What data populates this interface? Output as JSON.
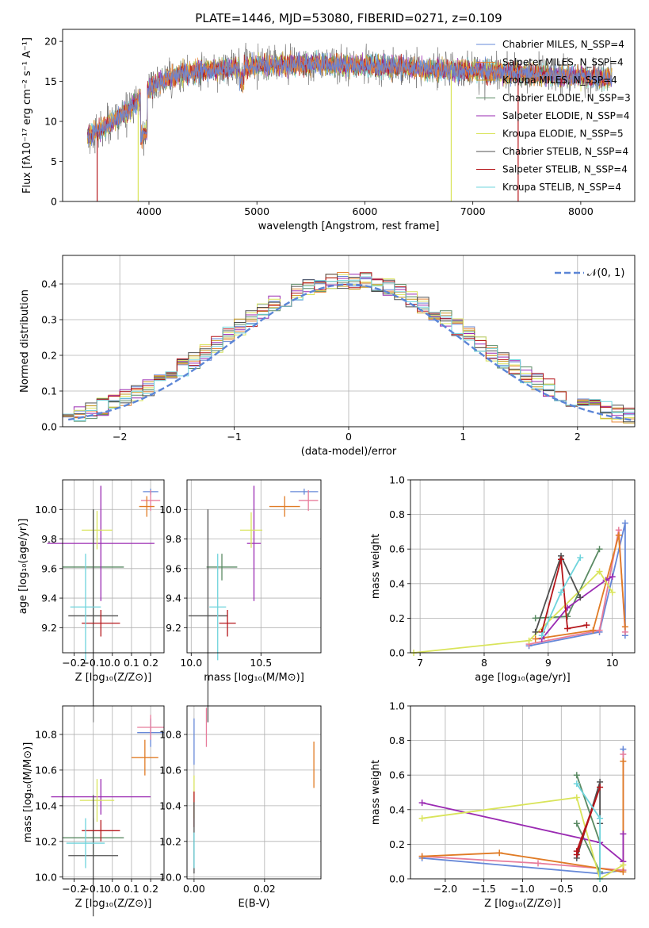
{
  "chart_data": [
    {
      "type": "line",
      "title": "PLATE=1446, MJD=53080, FIBERID=0271, z=0.109",
      "xlabel": "wavelength [Angstrom, rest frame]",
      "ylabel": "Flux [fλ10⁻¹⁷ erg cm⁻² s⁻¹ A⁻¹]",
      "xlim": [
        3200,
        8500
      ],
      "ylim": [
        0,
        21.5
      ],
      "xticks": [
        "4000",
        "5000",
        "6000",
        "7000",
        "8000"
      ],
      "yticks": [
        "0",
        "5",
        "10",
        "15",
        "20"
      ],
      "spectrum_range": [
        3430,
        8290
      ],
      "legend_position": "upper right",
      "series": [
        {
          "name": "Chabrier MILES, N_SSP=4",
          "color": "#6688d8"
        },
        {
          "name": "Salpeter MILES, N_SSP=4",
          "color": "#e8883a"
        },
        {
          "name": "Kroupa MILES, N_SSP=4",
          "color": "#c79a1e"
        },
        {
          "name": "Chabrier ELODIE, N_SSP=3",
          "color": "#5a8a63"
        },
        {
          "name": "Salpeter ELODIE, N_SSP=4",
          "color": "#9a2ab2"
        },
        {
          "name": "Kroupa ELODIE, N_SSP=5",
          "color": "#d9e45a"
        },
        {
          "name": "Chabrier STELIB, N_SSP=4",
          "color": "#505050"
        },
        {
          "name": "Salpeter STELIB, N_SSP=4",
          "color": "#b5161b"
        },
        {
          "name": "Kroupa STELIB, N_SSP=4",
          "color": "#6fd4dc"
        }
      ],
      "continuum": [
        [
          3430,
          8.0
        ],
        [
          3550,
          9.0
        ],
        [
          3700,
          10.3
        ],
        [
          3800,
          11.2
        ],
        [
          3900,
          12.5
        ],
        [
          4000,
          14.0
        ],
        [
          4100,
          15.0
        ],
        [
          4300,
          16.0
        ],
        [
          4600,
          16.5
        ],
        [
          5000,
          17.0
        ],
        [
          5500,
          17.2
        ],
        [
          6000,
          17.0
        ],
        [
          6500,
          16.6
        ],
        [
          7000,
          16.3
        ],
        [
          7500,
          15.9
        ],
        [
          8000,
          15.6
        ],
        [
          8290,
          15.4
        ]
      ],
      "drops": [
        [
          3520,
          "#b5161b"
        ],
        [
          3900,
          "#d9e45a"
        ],
        [
          6800,
          "#d9e45a"
        ],
        [
          7420,
          "#b5161b"
        ]
      ]
    },
    {
      "type": "step",
      "xlabel": "(data-model)/error",
      "ylabel": "Normed distribution",
      "xlim": [
        -2.5,
        2.5
      ],
      "ylim": [
        0,
        0.48
      ],
      "xticks": [
        "−2",
        "−1",
        "0",
        "1",
        "2"
      ],
      "yticks": [
        "0.0",
        "0.1",
        "0.2",
        "0.3",
        "0.4"
      ],
      "bin_width": 0.1,
      "reference": {
        "label": "𝒩(0, 1)",
        "color": "#5b85d6",
        "style": "dashed"
      }
    },
    {
      "type": "scatter-errorbar",
      "xlabel": "Z [log₁₀(Z/Z⊙)]",
      "ylabel": "age  [log₁₀(age/yr)]",
      "xlim": [
        -0.26,
        0.27
      ],
      "ylim": [
        9.03,
        10.2
      ],
      "xticks": [
        "−0.2",
        "−0.1",
        "0.0",
        "0.1",
        "0.2"
      ],
      "yticks": [
        "9.2",
        "9.4",
        "9.6",
        "9.8",
        "10.0"
      ],
      "points": [
        {
          "x": 0.2,
          "y": 10.12,
          "xe": 0.04,
          "ye": 0.02,
          "color": "#6688d8"
        },
        {
          "x": 0.2,
          "y": 10.06,
          "xe": 0.05,
          "ye": 0.07,
          "color": "#e87c9b"
        },
        {
          "x": 0.18,
          "y": 10.02,
          "xe": 0.04,
          "ye": 0.07,
          "color": "#e07b25"
        },
        {
          "x": -0.1,
          "y": 9.61,
          "xe": 0.16,
          "ye": 0.39,
          "color": "#5a8a63"
        },
        {
          "x": -0.06,
          "y": 9.77,
          "xe": 0.28,
          "ye": 0.39,
          "color": "#9a2ab2"
        },
        {
          "x": -0.08,
          "y": 9.86,
          "xe": 0.08,
          "ye": 0.13,
          "color": "#d9e45a"
        },
        {
          "x": -0.1,
          "y": 9.28,
          "xe": 0.13,
          "ye": 0.72,
          "color": "#505050"
        },
        {
          "x": -0.06,
          "y": 9.23,
          "xe": 0.1,
          "ye": 0.09,
          "color": "#b5161b"
        },
        {
          "x": -0.14,
          "y": 9.34,
          "xe": 0.08,
          "ye": 0.36,
          "color": "#6fd4dc"
        }
      ]
    },
    {
      "type": "scatter-errorbar",
      "xlabel": "mass [log₁₀(M/M⊙)]",
      "xlim": [
        9.97,
        10.93
      ],
      "ylim": [
        9.03,
        10.2
      ],
      "xticks": [
        "10.0",
        "10.5"
      ],
      "yticks": [
        "9.2",
        "9.4",
        "9.6",
        "9.8",
        "10.0"
      ],
      "points": [
        {
          "x": 10.81,
          "y": 10.12,
          "xe": 0.1,
          "ye": 0.02,
          "color": "#6688d8"
        },
        {
          "x": 10.84,
          "y": 10.06,
          "xe": 0.07,
          "ye": 0.07,
          "color": "#e87c9b"
        },
        {
          "x": 10.67,
          "y": 10.02,
          "xe": 0.11,
          "ye": 0.07,
          "color": "#e07b25"
        },
        {
          "x": 10.22,
          "y": 9.61,
          "xe": 0.11,
          "ye": 0.09,
          "color": "#5a8a63"
        },
        {
          "x": 10.45,
          "y": 9.77,
          "xe": 0.05,
          "ye": 0.39,
          "color": "#9a2ab2"
        },
        {
          "x": 10.43,
          "y": 9.86,
          "xe": 0.08,
          "ye": 0.12,
          "color": "#d9e45a"
        },
        {
          "x": 10.12,
          "y": 9.28,
          "xe": 0.14,
          "ye": 0.72,
          "color": "#505050"
        },
        {
          "x": 10.26,
          "y": 9.23,
          "xe": 0.06,
          "ye": 0.09,
          "color": "#b5161b"
        },
        {
          "x": 10.19,
          "y": 9.34,
          "xe": 0.06,
          "ye": 0.36,
          "color": "#6fd4dc"
        }
      ]
    },
    {
      "type": "line-markers",
      "xlabel": "age  [log₁₀(age/yr)]",
      "ylabel": "mass weight",
      "xlim": [
        6.85,
        10.35
      ],
      "ylim": [
        0,
        1.0
      ],
      "xticks": [
        "7",
        "8",
        "9",
        "10"
      ],
      "yticks": [
        "0.0",
        "0.2",
        "0.4",
        "0.6",
        "0.8",
        "1.0"
      ],
      "series": [
        {
          "color": "#6688d8",
          "x": [
            8.7,
            9.8,
            10.2,
            10.2
          ],
          "y": [
            0.04,
            0.12,
            0.75,
            0.1
          ]
        },
        {
          "color": "#e87c9b",
          "x": [
            8.7,
            9.8,
            10.1,
            10.2
          ],
          "y": [
            0.05,
            0.13,
            0.71,
            0.12
          ]
        },
        {
          "color": "#e07b25",
          "x": [
            8.8,
            9.7,
            10.1,
            10.2
          ],
          "y": [
            0.08,
            0.13,
            0.68,
            0.15
          ]
        },
        {
          "color": "#5a8a63",
          "x": [
            8.8,
            9.3,
            9.8
          ],
          "y": [
            0.2,
            0.21,
            0.6
          ]
        },
        {
          "color": "#9a2ab2",
          "x": [
            8.9,
            9.3,
            9.9,
            10.0
          ],
          "y": [
            0.08,
            0.26,
            0.42,
            0.44
          ]
        },
        {
          "color": "#d9e45a",
          "x": [
            6.9,
            8.7,
            9.8,
            10.0
          ],
          "y": [
            0.0,
            0.07,
            0.47,
            0.35
          ]
        },
        {
          "color": "#505050",
          "x": [
            8.8,
            9.2,
            9.5
          ],
          "y": [
            0.12,
            0.56,
            0.32
          ]
        },
        {
          "color": "#b5161b",
          "x": [
            8.9,
            9.2,
            9.3,
            9.6
          ],
          "y": [
            0.12,
            0.54,
            0.14,
            0.16
          ]
        },
        {
          "color": "#6fd4dc",
          "x": [
            8.9,
            9.2,
            9.5
          ],
          "y": [
            0.1,
            0.35,
            0.55
          ]
        }
      ]
    },
    {
      "type": "scatter-errorbar",
      "xlabel": "Z [log₁₀(Z/Z⊙)]",
      "ylabel": "mass [log₁₀(M/M⊙)]",
      "xlim": [
        -0.26,
        0.27
      ],
      "ylim": [
        9.99,
        10.96
      ],
      "xticks": [
        "−0.2",
        "−0.1",
        "0.0",
        "0.1",
        "0.2"
      ],
      "yticks": [
        "10.0",
        "10.2",
        "10.4",
        "10.6",
        "10.8"
      ],
      "points": [
        {
          "x": 0.2,
          "y": 10.81,
          "xe": 0.07,
          "ye": 0.08,
          "color": "#6688d8"
        },
        {
          "x": 0.2,
          "y": 10.84,
          "xe": 0.07,
          "ye": 0.07,
          "color": "#e87c9b"
        },
        {
          "x": 0.17,
          "y": 10.67,
          "xe": 0.07,
          "ye": 0.1,
          "color": "#e07b25"
        },
        {
          "x": -0.1,
          "y": 10.22,
          "xe": 0.16,
          "ye": 0.11,
          "color": "#5a8a63"
        },
        {
          "x": -0.06,
          "y": 10.45,
          "xe": 0.26,
          "ye": 0.1,
          "color": "#9a2ab2"
        },
        {
          "x": -0.08,
          "y": 10.43,
          "xe": 0.09,
          "ye": 0.12,
          "color": "#d9e45a"
        },
        {
          "x": -0.1,
          "y": 10.12,
          "xe": 0.13,
          "ye": 0.34,
          "color": "#505050"
        },
        {
          "x": -0.06,
          "y": 10.26,
          "xe": 0.1,
          "ye": 0.06,
          "color": "#b5161b"
        },
        {
          "x": -0.14,
          "y": 10.19,
          "xe": 0.1,
          "ye": 0.14,
          "color": "#6fd4dc"
        }
      ]
    },
    {
      "type": "scatter-errorbar",
      "xlabel": "E(B-V)",
      "xlim": [
        -0.002,
        0.036
      ],
      "ylim": [
        9.99,
        10.96
      ],
      "xticks": [
        "0.00",
        "0.02"
      ],
      "yticks": [
        "10.0",
        "10.2",
        "10.4",
        "10.6",
        "10.8"
      ],
      "points": [
        {
          "x": 0.0,
          "y": 10.76,
          "xe": 0.0,
          "ye": 0.13,
          "color": "#6688d8"
        },
        {
          "x": 0.0035,
          "y": 10.84,
          "xe": 0.0,
          "ye": 0.11,
          "color": "#e87c9b"
        },
        {
          "x": 0.034,
          "y": 10.63,
          "xe": 0.0,
          "ye": 0.13,
          "color": "#e07b25"
        },
        {
          "x": 0.0,
          "y": 10.45,
          "xe": 0.0,
          "ye": 0.12,
          "color": "#d9e45a"
        },
        {
          "x": 0.0,
          "y": 10.38,
          "xe": 0.0,
          "ye": 0.1,
          "color": "#b5161b"
        },
        {
          "x": 0.0,
          "y": 10.22,
          "xe": 0.0,
          "ye": 0.2,
          "color": "#505050"
        },
        {
          "x": 0.0,
          "y": 10.15,
          "xe": 0.0,
          "ye": 0.1,
          "color": "#6fd4dc"
        }
      ]
    },
    {
      "type": "line-markers",
      "xlabel": "Z [log₁₀(Z/Z⊙)]",
      "ylabel": "mass weight",
      "xlim": [
        -2.45,
        0.45
      ],
      "ylim": [
        0,
        1.0
      ],
      "xticks": [
        "−2.0",
        "−1.5",
        "−1.0",
        "−0.5",
        "0.0"
      ],
      "yticks": [
        "0.0",
        "0.2",
        "0.4",
        "0.6",
        "0.8",
        "1.0"
      ],
      "series": [
        {
          "color": "#6688d8",
          "x": [
            -2.3,
            0.0,
            0.3,
            0.3
          ],
          "y": [
            0.12,
            0.03,
            0.05,
            0.75
          ]
        },
        {
          "color": "#e87c9b",
          "x": [
            -2.3,
            -0.8,
            0.3,
            0.3
          ],
          "y": [
            0.13,
            0.09,
            0.05,
            0.72
          ]
        },
        {
          "color": "#e07b25",
          "x": [
            -2.3,
            -1.3,
            0.3,
            0.3
          ],
          "y": [
            0.13,
            0.15,
            0.04,
            0.68
          ]
        },
        {
          "color": "#5a8a63",
          "x": [
            -0.3,
            0.0,
            0.0,
            -0.3
          ],
          "y": [
            0.32,
            0.04,
            0.21,
            0.6
          ]
        },
        {
          "color": "#9a2ab2",
          "x": [
            -2.3,
            0.0,
            0.3,
            0.3
          ],
          "y": [
            0.44,
            0.21,
            0.1,
            0.26
          ]
        },
        {
          "color": "#d9e45a",
          "x": [
            -2.3,
            -0.3,
            0.0,
            0.3
          ],
          "y": [
            0.35,
            0.47,
            0.0,
            0.08
          ]
        },
        {
          "color": "#505050",
          "x": [
            -0.3,
            0.0,
            0.0
          ],
          "y": [
            0.12,
            0.56,
            0.32
          ]
        },
        {
          "color": "#b5161b",
          "x": [
            -0.3,
            0.0,
            -0.3
          ],
          "y": [
            0.14,
            0.53,
            0.16
          ]
        },
        {
          "color": "#6fd4dc",
          "x": [
            -0.3,
            0.0,
            0.0
          ],
          "y": [
            0.55,
            0.35,
            0.0
          ]
        }
      ]
    }
  ]
}
